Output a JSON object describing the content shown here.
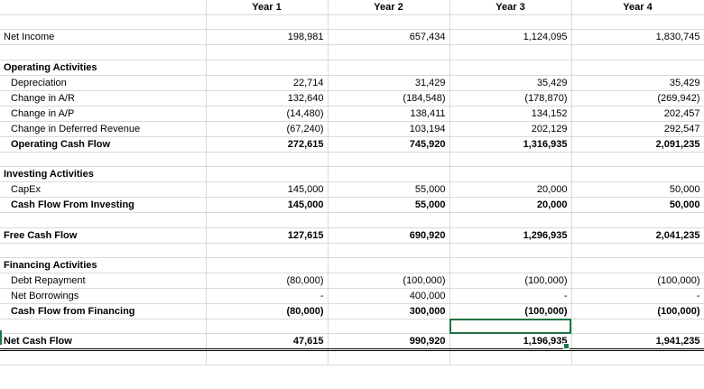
{
  "headers": [
    "",
    "Year 1",
    "Year 2",
    "Year 3",
    "Year 4"
  ],
  "net_income": {
    "label": "Net Income",
    "values": [
      "198,981",
      "657,434",
      "1,124,095",
      "1,830,745"
    ]
  },
  "operating": {
    "title": "Operating Activities",
    "rows": [
      {
        "label": "Depreciation",
        "values": [
          "22,714",
          "31,429",
          "35,429",
          "35,429"
        ]
      },
      {
        "label": "Change in A/R",
        "values": [
          "132,640",
          "(184,548)",
          "(178,870)",
          "(269,942)"
        ]
      },
      {
        "label": "Change in A/P",
        "values": [
          "(14,480)",
          "138,411",
          "134,152",
          "202,457"
        ]
      },
      {
        "label": "Change in Deferred Revenue",
        "values": [
          "(67,240)",
          "103,194",
          "202,129",
          "292,547"
        ]
      }
    ],
    "total": {
      "label": "Operating Cash Flow",
      "values": [
        "272,615",
        "745,920",
        "1,316,935",
        "2,091,235"
      ]
    }
  },
  "investing": {
    "title": "Investing Activities",
    "rows": [
      {
        "label": "CapEx",
        "values": [
          "145,000",
          "55,000",
          "20,000",
          "50,000"
        ]
      }
    ],
    "total": {
      "label": "Cash Flow From Investing",
      "values": [
        "145,000",
        "55,000",
        "20,000",
        "50,000"
      ]
    }
  },
  "free_cash_flow": {
    "label": "Free Cash Flow",
    "values": [
      "127,615",
      "690,920",
      "1,296,935",
      "2,041,235"
    ]
  },
  "financing": {
    "title": "Financing Activities",
    "rows": [
      {
        "label": "Debt Repayment",
        "values": [
          "(80,000)",
          "(100,000)",
          "(100,000)",
          "(100,000)"
        ]
      },
      {
        "label": "Net Borrowings",
        "values": [
          "-",
          "400,000",
          "-",
          "-"
        ]
      }
    ],
    "total": {
      "label": "Cash Flow from Financing",
      "values": [
        "(80,000)",
        "300,000",
        "(100,000)",
        "(100,000)"
      ]
    }
  },
  "net_cash_flow": {
    "label": "Net Cash Flow",
    "values": [
      "47,615",
      "990,920",
      "1,196,935",
      "1,941,235"
    ]
  },
  "colors": {
    "selection": "#217346",
    "gridline": "#d9d9d9"
  }
}
